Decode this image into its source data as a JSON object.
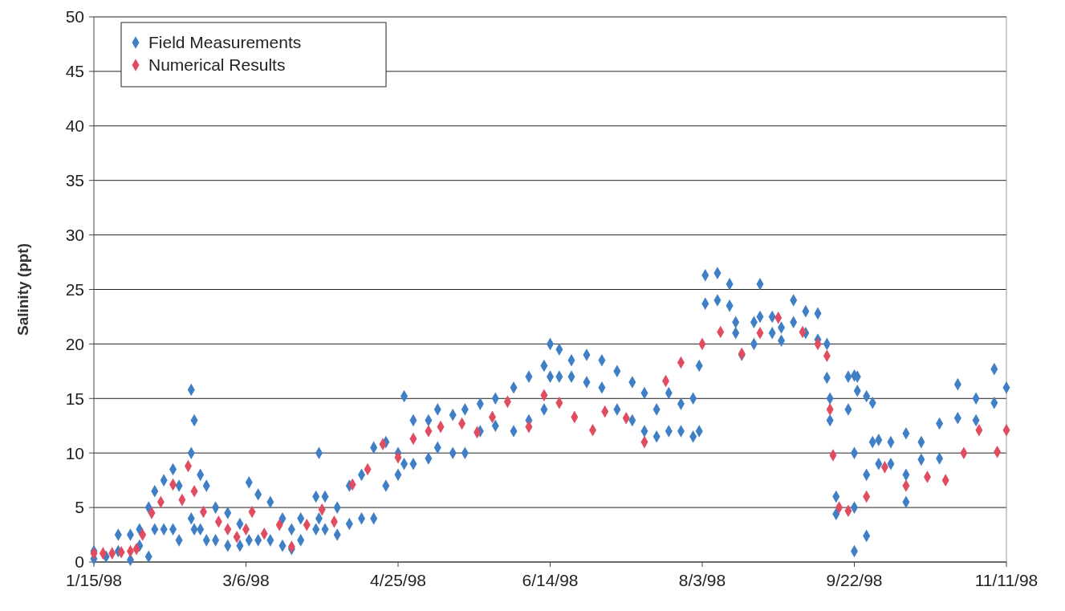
{
  "chart_data": {
    "type": "scatter",
    "ylabel": "Salinity (ppt)",
    "marker": "diamond",
    "grid": "y",
    "legend": "top left",
    "xlim": [
      "1998-01-15",
      "1998-11-11"
    ],
    "xticks": [
      {
        "value": "1998-01-15",
        "label": "1/15/98"
      },
      {
        "value": "1998-03-06",
        "label": "3/6/98"
      },
      {
        "value": "1998-04-25",
        "label": "4/25/98"
      },
      {
        "value": "1998-06-14",
        "label": "6/14/98"
      },
      {
        "value": "1998-08-03",
        "label": "8/3/98"
      },
      {
        "value": "1998-09-22",
        "label": "9/22/98"
      },
      {
        "value": "1998-11-11",
        "label": "11/11/98"
      }
    ],
    "ylim": [
      0,
      50
    ],
    "yticks": [
      0,
      5,
      10,
      15,
      20,
      25,
      30,
      35,
      40,
      45,
      50
    ],
    "series": [
      {
        "name": "Field Measurements",
        "color": "#3f7fc6",
        "x": [
          "1998-01-15",
          "1998-01-15",
          "1998-01-19",
          "1998-01-23",
          "1998-01-23",
          "1998-01-27",
          "1998-01-27",
          "1998-01-30",
          "1998-01-30",
          "1998-02-02",
          "1998-02-02",
          "1998-02-04",
          "1998-02-04",
          "1998-02-07",
          "1998-02-07",
          "1998-02-10",
          "1998-02-10",
          "1998-02-12",
          "1998-02-12",
          "1998-02-16",
          "1998-02-16",
          "1998-02-16",
          "1998-02-17",
          "1998-02-17",
          "1998-02-19",
          "1998-02-19",
          "1998-02-21",
          "1998-02-21",
          "1998-02-24",
          "1998-02-24",
          "1998-02-28",
          "1998-02-28",
          "1998-03-04",
          "1998-03-04",
          "1998-03-07",
          "1998-03-07",
          "1998-03-10",
          "1998-03-10",
          "1998-03-14",
          "1998-03-14",
          "1998-03-18",
          "1998-03-18",
          "1998-03-21",
          "1998-03-21",
          "1998-03-24",
          "1998-03-24",
          "1998-03-29",
          "1998-03-29",
          "1998-03-30",
          "1998-03-30",
          "1998-04-01",
          "1998-04-01",
          "1998-04-05",
          "1998-04-05",
          "1998-04-09",
          "1998-04-09",
          "1998-04-13",
          "1998-04-13",
          "1998-04-17",
          "1998-04-17",
          "1998-04-21",
          "1998-04-21",
          "1998-04-25",
          "1998-04-25",
          "1998-04-27",
          "1998-04-27",
          "1998-04-30",
          "1998-04-30",
          "1998-05-05",
          "1998-05-05",
          "1998-05-08",
          "1998-05-08",
          "1998-05-13",
          "1998-05-13",
          "1998-05-17",
          "1998-05-17",
          "1998-05-22",
          "1998-05-22",
          "1998-05-27",
          "1998-05-27",
          "1998-06-02",
          "1998-06-02",
          "1998-06-07",
          "1998-06-07",
          "1998-06-12",
          "1998-06-12",
          "1998-06-14",
          "1998-06-14",
          "1998-06-17",
          "1998-06-17",
          "1998-06-21",
          "1998-06-21",
          "1998-06-26",
          "1998-06-26",
          "1998-07-01",
          "1998-07-01",
          "1998-07-06",
          "1998-07-06",
          "1998-07-11",
          "1998-07-11",
          "1998-07-15",
          "1998-07-15",
          "1998-07-19",
          "1998-07-19",
          "1998-07-23",
          "1998-07-23",
          "1998-07-27",
          "1998-07-27",
          "1998-07-31",
          "1998-07-31",
          "1998-08-02",
          "1998-08-02",
          "1998-08-04",
          "1998-08-04",
          "1998-08-08",
          "1998-08-08",
          "1998-08-12",
          "1998-08-12",
          "1998-08-14",
          "1998-08-14",
          "1998-08-16",
          "1998-08-20",
          "1998-08-20",
          "1998-08-22",
          "1998-08-22",
          "1998-08-26",
          "1998-08-26",
          "1998-08-29",
          "1998-08-29",
          "1998-09-02",
          "1998-09-02",
          "1998-09-06",
          "1998-09-06",
          "1998-09-10",
          "1998-09-10",
          "1998-09-13",
          "1998-09-13",
          "1998-09-14",
          "1998-09-14",
          "1998-09-16",
          "1998-09-16",
          "1998-09-20",
          "1998-09-20",
          "1998-09-22",
          "1998-09-22",
          "1998-09-22",
          "1998-09-22",
          "1998-09-23",
          "1998-09-23",
          "1998-09-26",
          "1998-09-26",
          "1998-09-26",
          "1998-09-28",
          "1998-09-28",
          "1998-09-30",
          "1998-09-30",
          "1998-10-04",
          "1998-10-04",
          "1998-10-09",
          "1998-10-09",
          "1998-10-09",
          "1998-10-14",
          "1998-10-14",
          "1998-10-20",
          "1998-10-20",
          "1998-10-26",
          "1998-10-26",
          "1998-11-01",
          "1998-11-01",
          "1998-11-07",
          "1998-11-07",
          "1998-11-11"
        ],
        "values": [
          0.3,
          1.0,
          0.5,
          1,
          2.5,
          0.2,
          2.5,
          1.5,
          3,
          0.5,
          5,
          3,
          6.5,
          3,
          7.5,
          3,
          8.5,
          2,
          7,
          4,
          10,
          15.8,
          3,
          13,
          3,
          8,
          2,
          7,
          2,
          5,
          1.5,
          4.5,
          1.5,
          3.5,
          2,
          7.3,
          2,
          6.2,
          2,
          5.5,
          1.5,
          4,
          1.2,
          3,
          2,
          4,
          3,
          6,
          4,
          10,
          3,
          6,
          2.5,
          5,
          3.5,
          7,
          4,
          8,
          4,
          10.5,
          7,
          11,
          8,
          10,
          9,
          15.2,
          9,
          13,
          9.5,
          13,
          10.5,
          14,
          10,
          13.5,
          10,
          14,
          12,
          14.5,
          12.5,
          15,
          12,
          16,
          13,
          17,
          14,
          18,
          17,
          20,
          17,
          19.5,
          17,
          18.5,
          16.5,
          19,
          16,
          18.5,
          14,
          17.5,
          13,
          16.5,
          12,
          15.5,
          11.5,
          14,
          12,
          15.5,
          12,
          14.5,
          11.5,
          15,
          12,
          18,
          23.7,
          26.3,
          24,
          26.5,
          23.5,
          25.5,
          21,
          22,
          19,
          20,
          22,
          22.5,
          25.5,
          21,
          22.5,
          20.3,
          21.5,
          22,
          24,
          21,
          23,
          20.4,
          22.8,
          16.9,
          20,
          13,
          15,
          4.4,
          6,
          14,
          17,
          1.0,
          5,
          10,
          17.1,
          15.7,
          17,
          2.4,
          8,
          15.2,
          11,
          14.6,
          9,
          11.2,
          9,
          11,
          5.5,
          8,
          11.8,
          9.4,
          11,
          9.5,
          12.7,
          13.2,
          16.3,
          13,
          15,
          14.6,
          17.7,
          16
        ]
      },
      {
        "name": "Numerical Results",
        "color": "#e04c60",
        "x": [
          "1998-01-15",
          "1998-01-18",
          "1998-01-21",
          "1998-01-24",
          "1998-01-27",
          "1998-01-29",
          "1998-01-31",
          "1998-02-03",
          "1998-02-06",
          "1998-02-10",
          "1998-02-13",
          "1998-02-15",
          "1998-02-17",
          "1998-02-20",
          "1998-02-25",
          "1998-02-28",
          "1998-03-03",
          "1998-03-06",
          "1998-03-08",
          "1998-03-12",
          "1998-03-17",
          "1998-03-21",
          "1998-03-26",
          "1998-03-31",
          "1998-04-04",
          "1998-04-10",
          "1998-04-15",
          "1998-04-20",
          "1998-04-25",
          "1998-04-30",
          "1998-05-05",
          "1998-05-09",
          "1998-05-16",
          "1998-05-21",
          "1998-05-26",
          "1998-05-31",
          "1998-06-07",
          "1998-06-12",
          "1998-06-17",
          "1998-06-22",
          "1998-06-28",
          "1998-07-02",
          "1998-07-09",
          "1998-07-15",
          "1998-07-22",
          "1998-07-27",
          "1998-08-03",
          "1998-08-09",
          "1998-08-16",
          "1998-08-22",
          "1998-08-28",
          "1998-09-05",
          "1998-09-10",
          "1998-09-13",
          "1998-09-14",
          "1998-09-15",
          "1998-09-17",
          "1998-09-20",
          "1998-09-26",
          "1998-10-02",
          "1998-10-09",
          "1998-10-16",
          "1998-10-22",
          "1998-10-28",
          "1998-11-02",
          "1998-11-08",
          "1998-11-11"
        ],
        "values": [
          0.8,
          0.8,
          0.8,
          0.9,
          1.0,
          1.2,
          2.5,
          4.5,
          5.5,
          7.1,
          5.7,
          8.8,
          6.5,
          4.6,
          3.7,
          3.0,
          2.3,
          3.0,
          4.6,
          2.6,
          3.4,
          1.4,
          3.4,
          4.8,
          3.7,
          7.1,
          8.5,
          10.8,
          9.6,
          11.3,
          12.0,
          12.4,
          12.7,
          11.9,
          13.3,
          14.7,
          12.4,
          15.3,
          14.6,
          13.3,
          12.1,
          13.8,
          13.2,
          11.0,
          16.6,
          18.3,
          20.0,
          21.1,
          19.1,
          21.0,
          22.4,
          21.1,
          20.0,
          18.9,
          14.0,
          9.8,
          5.0,
          4.7,
          6.0,
          8.7,
          7.0,
          7.8,
          7.5,
          10.0,
          12.1,
          10.1,
          12.1
        ]
      }
    ]
  }
}
